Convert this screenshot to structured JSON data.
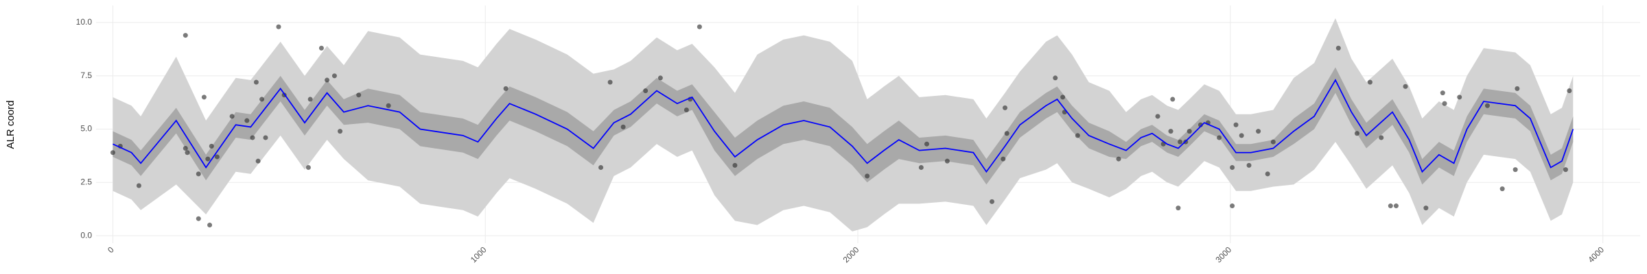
{
  "chart_data": {
    "type": "line",
    "y_label": "ALR coord",
    "xlim": [
      -45,
      4100
    ],
    "ylim": [
      -0.35,
      10.8
    ],
    "xticks": [
      0,
      1000,
      2000,
      3000,
      4000
    ],
    "yticks": [
      {
        "value": 0,
        "label": "0.0"
      },
      {
        "value": 2.5,
        "label": "2.5"
      },
      {
        "value": 5,
        "label": "5.0"
      },
      {
        "value": 7.5,
        "label": "7.5"
      },
      {
        "value": 10,
        "label": "10.0"
      }
    ],
    "grid": true,
    "x": [
      0,
      50,
      75,
      170,
      250,
      330,
      370,
      450,
      515,
      575,
      620,
      685,
      770,
      825,
      940,
      980,
      1030,
      1065,
      1135,
      1220,
      1290,
      1345,
      1390,
      1460,
      1515,
      1555,
      1615,
      1670,
      1730,
      1800,
      1855,
      1925,
      1985,
      2025,
      2070,
      2110,
      2165,
      2235,
      2310,
      2345,
      2395,
      2435,
      2505,
      2535,
      2575,
      2620,
      2675,
      2720,
      2760,
      2790,
      2830,
      2860,
      2890,
      2930,
      2970,
      3015,
      3055,
      3115,
      3170,
      3225,
      3282,
      3325,
      3365,
      3435,
      3480,
      3515,
      3560,
      3600,
      3635,
      3680,
      3765,
      3805,
      3860,
      3890,
      3920
    ],
    "bands": [
      {
        "color": "#d3d3d3",
        "lower": [
          2.1,
          1.7,
          1.2,
          2.4,
          1.0,
          3.0,
          2.9,
          4.7,
          3.1,
          4.5,
          3.6,
          2.6,
          2.3,
          1.5,
          1.2,
          0.9,
          2.0,
          2.7,
          2.2,
          1.5,
          0.6,
          2.8,
          3.2,
          4.3,
          3.7,
          4.0,
          1.9,
          0.7,
          0.5,
          1.2,
          1.4,
          1.1,
          0.2,
          0.4,
          1.0,
          1.5,
          1.5,
          1.6,
          1.4,
          0.5,
          1.7,
          2.7,
          3.1,
          3.4,
          2.5,
          2.2,
          1.8,
          2.2,
          2.8,
          3.0,
          2.5,
          2.3,
          2.8,
          3.5,
          3.2,
          2.1,
          2.1,
          2.3,
          2.4,
          3.1,
          4.4,
          3.3,
          2.2,
          3.3,
          2.0,
          0.5,
          1.3,
          0.9,
          2.5,
          3.8,
          3.6,
          3.0,
          0.7,
          1.0,
          2.5
        ],
        "upper": [
          6.5,
          6.1,
          5.6,
          8.4,
          5.4,
          7.4,
          7.3,
          9.1,
          7.5,
          8.9,
          8.0,
          9.6,
          9.3,
          8.5,
          8.2,
          7.9,
          9.0,
          9.7,
          9.2,
          8.5,
          7.6,
          7.8,
          8.2,
          9.3,
          8.7,
          9.0,
          7.9,
          6.7,
          8.5,
          9.2,
          9.4,
          9.1,
          8.2,
          6.4,
          7.0,
          7.5,
          6.5,
          6.6,
          6.4,
          5.5,
          6.7,
          7.7,
          9.1,
          9.4,
          8.5,
          7.2,
          6.8,
          5.8,
          6.4,
          6.6,
          6.1,
          5.9,
          6.4,
          7.1,
          6.8,
          5.7,
          5.7,
          5.9,
          7.4,
          8.1,
          10.2,
          8.3,
          7.2,
          8.3,
          7.0,
          5.5,
          6.3,
          5.9,
          7.5,
          8.8,
          8.6,
          8.0,
          5.7,
          6.0,
          7.5
        ]
      },
      {
        "color": "#a9a9a9",
        "lower": [
          3.7,
          3.3,
          2.8,
          4.8,
          2.6,
          4.6,
          4.5,
          6.3,
          4.7,
          6.1,
          5.2,
          5.3,
          5.0,
          4.2,
          3.9,
          3.6,
          4.7,
          5.4,
          4.9,
          4.2,
          3.3,
          4.7,
          5.1,
          6.2,
          5.6,
          5.9,
          4.0,
          2.8,
          3.6,
          4.3,
          4.5,
          4.2,
          3.3,
          2.5,
          3.1,
          3.6,
          3.4,
          3.5,
          3.3,
          2.4,
          3.6,
          4.6,
          5.5,
          5.8,
          4.9,
          4.1,
          3.7,
          3.6,
          4.2,
          4.4,
          3.9,
          3.7,
          4.2,
          4.9,
          4.6,
          3.5,
          3.5,
          3.7,
          4.3,
          5.0,
          6.7,
          5.2,
          4.1,
          5.2,
          3.9,
          2.4,
          3.2,
          2.8,
          4.4,
          5.7,
          5.5,
          4.9,
          2.6,
          2.9,
          4.4
        ],
        "upper": [
          4.9,
          4.5,
          4.0,
          6.0,
          3.8,
          5.8,
          5.7,
          7.5,
          5.9,
          7.3,
          6.4,
          6.9,
          6.6,
          5.8,
          5.5,
          5.2,
          6.3,
          7.0,
          6.5,
          5.8,
          4.9,
          5.9,
          6.3,
          7.4,
          6.8,
          7.1,
          5.8,
          4.6,
          5.4,
          6.1,
          6.3,
          6.0,
          5.1,
          4.3,
          4.9,
          5.4,
          4.6,
          4.7,
          4.5,
          3.6,
          4.8,
          5.8,
          6.7,
          7.0,
          6.1,
          5.3,
          4.9,
          4.4,
          5.0,
          5.2,
          4.7,
          4.5,
          5.0,
          5.7,
          5.4,
          4.3,
          4.3,
          4.5,
          5.5,
          6.2,
          7.9,
          6.4,
          5.3,
          6.4,
          5.1,
          3.6,
          4.4,
          4.0,
          5.6,
          6.9,
          6.7,
          6.1,
          3.8,
          4.1,
          5.6
        ]
      }
    ],
    "series": [
      {
        "color": "#0000ff",
        "values": [
          4.3,
          3.9,
          3.4,
          5.4,
          3.2,
          5.2,
          5.1,
          6.9,
          5.3,
          6.7,
          5.8,
          6.1,
          5.8,
          5.0,
          4.7,
          4.4,
          5.5,
          6.2,
          5.7,
          5.0,
          4.1,
          5.3,
          5.7,
          6.8,
          6.2,
          6.5,
          4.9,
          3.7,
          4.5,
          5.2,
          5.4,
          5.1,
          4.2,
          3.4,
          4.0,
          4.5,
          4.0,
          4.1,
          3.9,
          3.0,
          4.2,
          5.2,
          6.1,
          6.4,
          5.5,
          4.7,
          4.3,
          4.0,
          4.6,
          4.8,
          4.3,
          4.1,
          4.6,
          5.3,
          5.0,
          3.9,
          3.9,
          4.1,
          4.9,
          5.6,
          7.3,
          5.8,
          4.7,
          5.8,
          4.5,
          3.0,
          3.8,
          3.4,
          5.0,
          6.3,
          6.1,
          5.5,
          3.2,
          3.5,
          5.0
        ]
      }
    ],
    "points": {
      "color": "#333333",
      "x": [
        0,
        20,
        70,
        195,
        195,
        200,
        230,
        230,
        245,
        255,
        260,
        265,
        280,
        320,
        360,
        375,
        385,
        390,
        400,
        410,
        445,
        460,
        525,
        530,
        560,
        575,
        595,
        610,
        660,
        740,
        1055,
        1310,
        1335,
        1370,
        1430,
        1470,
        1540,
        1550,
        1575,
        1670,
        2025,
        2170,
        2185,
        2240,
        2360,
        2390,
        2395,
        2400,
        2530,
        2550,
        2555,
        2590,
        2700,
        2805,
        2820,
        2840,
        2845,
        2860,
        2865,
        2880,
        2890,
        2920,
        2940,
        2970,
        3005,
        3005,
        3015,
        3030,
        3050,
        3075,
        3100,
        3115,
        3290,
        3340,
        3375,
        3405,
        3430,
        3445,
        3470,
        3525,
        3570,
        3575,
        3615,
        3690,
        3730,
        3765,
        3770,
        3900,
        3910
      ],
      "y": [
        3.9,
        4.2,
        2.35,
        9.4,
        4.1,
        3.9,
        2.9,
        0.8,
        6.5,
        3.6,
        0.5,
        4.2,
        3.7,
        5.6,
        5.4,
        4.6,
        7.2,
        3.5,
        6.4,
        4.6,
        9.8,
        6.6,
        3.2,
        6.4,
        8.8,
        7.3,
        7.5,
        4.9,
        6.6,
        6.1,
        6.9,
        3.2,
        7.2,
        5.1,
        6.8,
        7.4,
        5.9,
        6.4,
        9.8,
        3.3,
        2.8,
        3.2,
        4.3,
        3.5,
        1.6,
        3.6,
        6.0,
        4.8,
        7.4,
        6.5,
        5.8,
        4.7,
        3.6,
        5.6,
        4.3,
        4.9,
        6.4,
        1.3,
        4.4,
        4.4,
        4.9,
        5.2,
        5.3,
        4.6,
        3.2,
        1.4,
        5.2,
        4.7,
        3.3,
        4.9,
        2.9,
        4.4,
        8.8,
        4.8,
        7.2,
        4.6,
        1.4,
        1.4,
        7.0,
        1.3,
        6.7,
        6.2,
        6.5,
        6.1,
        2.2,
        3.1,
        6.9,
        3.1,
        6.8
      ]
    }
  }
}
